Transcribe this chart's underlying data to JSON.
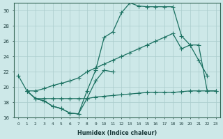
{
  "xlabel": "Humidex (Indice chaleur)",
  "xlim": [
    -0.5,
    23.5
  ],
  "ylim": [
    16,
    31
  ],
  "yticks": [
    16,
    18,
    20,
    22,
    24,
    26,
    28,
    30
  ],
  "xticks": [
    0,
    1,
    2,
    3,
    4,
    5,
    6,
    7,
    8,
    9,
    10,
    11,
    12,
    13,
    14,
    15,
    16,
    17,
    18,
    19,
    20,
    21,
    22,
    23
  ],
  "bg_color": "#cde8e8",
  "grid_color": "#aacccc",
  "line_color": "#1a7060",
  "line1_x": [
    0,
    1,
    2,
    3,
    4,
    5,
    6,
    7,
    8,
    9,
    10,
    11,
    12,
    13,
    14,
    15,
    16,
    17,
    18,
    19,
    20,
    21,
    22
  ],
  "line1_y": [
    21.5,
    19.5,
    18.5,
    18.2,
    17.5,
    17.2,
    16.6,
    16.5,
    19.5,
    22.2,
    26.5,
    27.2,
    29.7,
    31.0,
    30.6,
    30.5,
    30.5,
    30.5,
    30.5,
    26.7,
    25.5,
    23.5,
    21.5
  ],
  "line2_x": [
    1,
    2,
    3,
    4,
    5,
    6,
    7,
    8,
    9,
    10,
    11
  ],
  "line2_y": [
    19.5,
    18.5,
    18.2,
    17.5,
    17.2,
    16.6,
    16.5,
    18.5,
    20.8,
    22.2,
    22.0
  ],
  "line3_x": [
    1,
    2,
    3,
    4,
    5,
    6,
    7,
    8,
    9,
    10,
    11,
    12,
    13,
    14,
    15,
    16,
    17,
    18,
    19,
    20,
    21,
    22,
    23
  ],
  "line3_y": [
    19.5,
    18.5,
    18.5,
    18.5,
    18.5,
    18.5,
    18.5,
    18.5,
    18.7,
    18.8,
    18.9,
    19.0,
    19.1,
    19.2,
    19.3,
    19.3,
    19.3,
    19.3,
    19.4,
    19.5,
    19.5,
    19.5,
    19.5
  ],
  "line4_x": [
    1,
    2,
    3,
    4,
    5,
    6,
    7,
    8,
    9,
    10,
    11,
    12,
    13,
    14,
    15,
    16,
    17,
    18,
    19,
    20,
    21,
    22,
    23
  ],
  "line4_y": [
    19.5,
    19.5,
    19.8,
    20.2,
    20.5,
    20.8,
    21.2,
    22.0,
    22.5,
    23.0,
    23.5,
    24.0,
    24.5,
    25.0,
    25.5,
    26.0,
    26.5,
    27.0,
    25.0,
    25.5,
    25.5,
    19.5,
    19.5
  ]
}
